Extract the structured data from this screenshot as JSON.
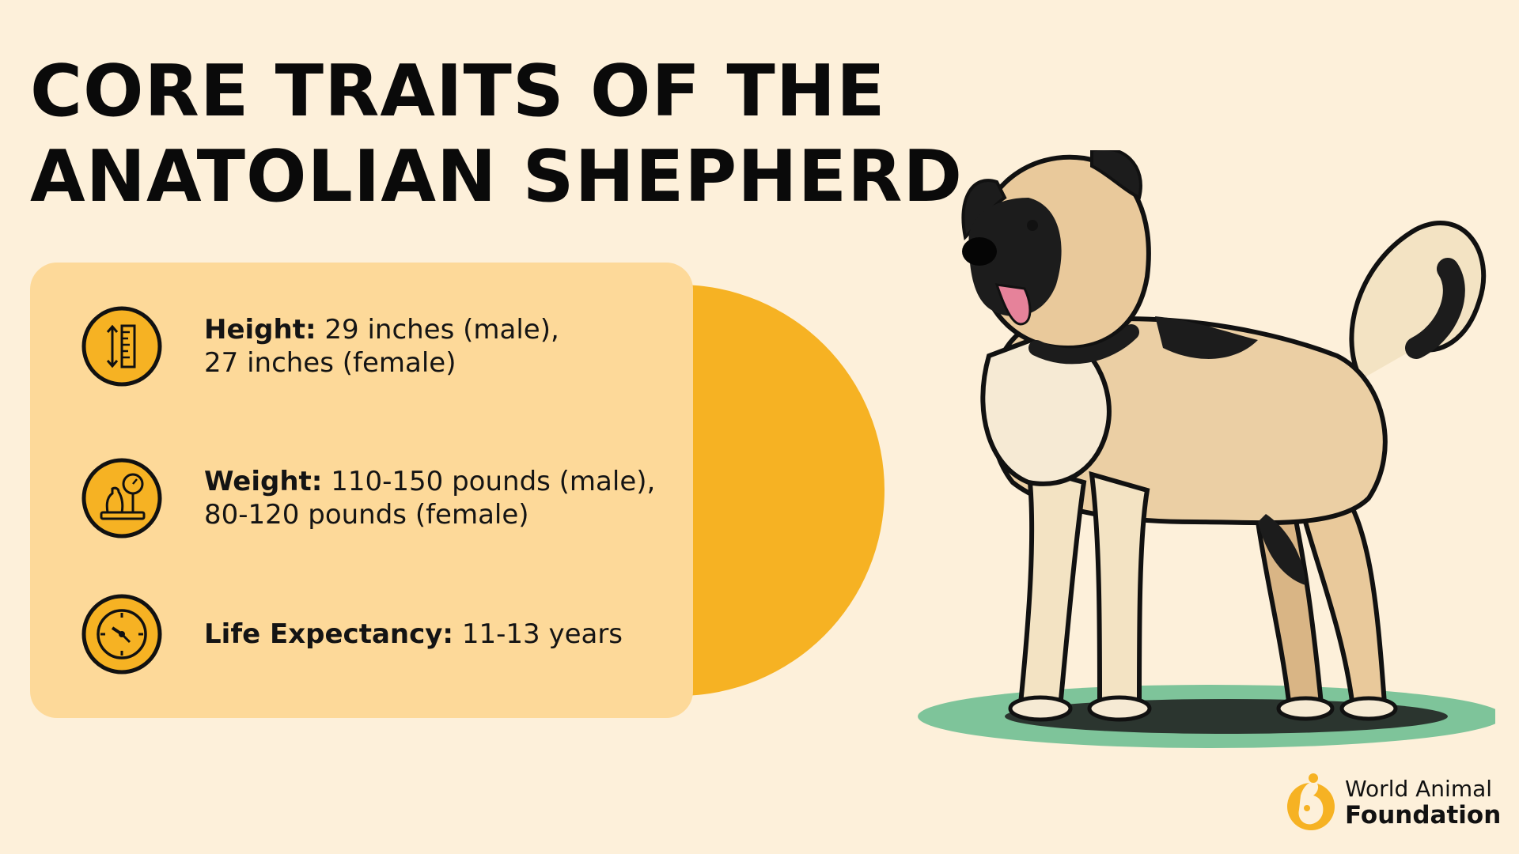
{
  "title": {
    "line1": "CORE TRAITS OF THE",
    "line2": "ANATOLIAN SHEPHERD"
  },
  "traits": [
    {
      "icon": "height-ruler-icon",
      "label": "Height:",
      "value_line1": "29 inches (male),",
      "value_line2": "27 inches (female)"
    },
    {
      "icon": "weight-scale-icon",
      "label": "Weight:",
      "value_line1": "110-150 pounds (male),",
      "value_line2": "80-120 pounds (female)"
    },
    {
      "icon": "clock-icon",
      "label": "Life Expectancy:",
      "value_line1": "11-13 years",
      "value_line2": ""
    }
  ],
  "illustration": "anatolian-shepherd-dog-illustration",
  "logo": {
    "icon": "world-animal-foundation-logo-icon",
    "line1": "World Animal",
    "line2": "Foundation"
  },
  "colors": {
    "background": "#fdf0da",
    "card": "#fdd999",
    "accent": "#f6b223",
    "text": "#111111"
  }
}
